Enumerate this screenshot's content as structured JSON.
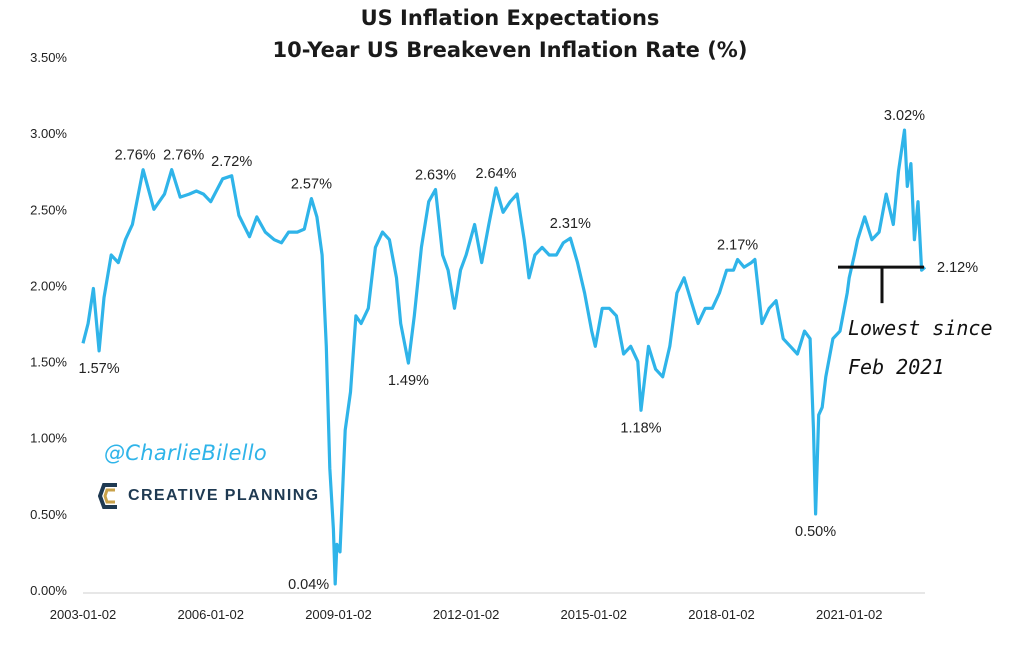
{
  "title_line_1": "US Inflation Expectations",
  "title_line_2": "10-Year US Breakeven Inflation Rate (%)",
  "watermark": {
    "handle": "@CharlieBilello",
    "brand": "CREATIVE PLANNING"
  },
  "annotation": {
    "line_1": "Lowest since",
    "line_2": "Feb 2021",
    "level": 2.12
  },
  "colors": {
    "series": "#2fb4e9",
    "text": "#1a1a1a",
    "handle": "#2fb4e9",
    "brand": "#1f3a52",
    "brand_mark_gold": "#c9a24a"
  },
  "chart_data": {
    "type": "line",
    "title": "US Inflation Expectations",
    "subtitle": "10-Year US Breakeven Inflation Rate (%)",
    "xlabel": "",
    "ylabel": "",
    "x_range": [
      "2003-01-02",
      "2022-10-14"
    ],
    "ylim": [
      0,
      3.5
    ],
    "y_ticks": [
      0.0,
      0.5,
      1.0,
      1.5,
      2.0,
      2.5,
      3.0,
      3.5
    ],
    "y_tick_labels": [
      "0.00%",
      "0.50%",
      "1.00%",
      "1.50%",
      "2.00%",
      "2.50%",
      "3.00%",
      "3.50%"
    ],
    "x_ticks": [
      "2003-01-02",
      "2006-01-02",
      "2009-01-02",
      "2012-01-02",
      "2015-01-02",
      "2018-01-02",
      "2021-01-02"
    ],
    "x_tick_labels": [
      "2003-01-02",
      "2006-01-02",
      "2009-01-02",
      "2012-01-02",
      "2015-01-02",
      "2018-01-02",
      "2021-01-02"
    ],
    "grid": false,
    "legend": "none",
    "series": [
      {
        "x": [
          "2003-01-02",
          "2003-02-15",
          "2003-04-01",
          "2003-05-20",
          "2003-07-01",
          "2003-09-01",
          "2003-11-01",
          "2004-01-01",
          "2004-03-01",
          "2004-06-01",
          "2004-09-01",
          "2004-12-01",
          "2005-02-01",
          "2005-04-15",
          "2005-07-01",
          "2005-09-01",
          "2005-11-01",
          "2006-01-02",
          "2006-04-15",
          "2006-07-01",
          "2006-09-01",
          "2006-12-01",
          "2007-02-01",
          "2007-04-15",
          "2007-07-01",
          "2007-09-01",
          "2007-11-01",
          "2008-01-15",
          "2008-03-15",
          "2008-05-15",
          "2008-07-01",
          "2008-08-15",
          "2008-09-20",
          "2008-10-20",
          "2008-11-20",
          "2008-12-05",
          "2008-12-20",
          "2009-01-15",
          "2009-03-01",
          "2009-04-15",
          "2009-06-01",
          "2009-07-15",
          "2009-09-15",
          "2009-11-15",
          "2010-01-15",
          "2010-03-15",
          "2010-05-15",
          "2010-06-20",
          "2010-08-25",
          "2010-10-15",
          "2010-12-15",
          "2011-02-15",
          "2011-04-15",
          "2011-06-15",
          "2011-08-01",
          "2011-09-25",
          "2011-11-15",
          "2012-01-02",
          "2012-03-15",
          "2012-05-15",
          "2012-07-15",
          "2012-09-15",
          "2012-11-15",
          "2013-01-15",
          "2013-03-15",
          "2013-05-15",
          "2013-06-25",
          "2013-08-15",
          "2013-10-15",
          "2013-12-15",
          "2014-02-15",
          "2014-04-15",
          "2014-06-15",
          "2014-08-15",
          "2014-10-15",
          "2014-12-15",
          "2015-01-15",
          "2015-03-15",
          "2015-05-15",
          "2015-07-15",
          "2015-09-15",
          "2015-11-15",
          "2016-01-15",
          "2016-02-11",
          "2016-04-15",
          "2016-06-15",
          "2016-08-15",
          "2016-10-15",
          "2016-12-15",
          "2017-02-15",
          "2017-04-15",
          "2017-06-15",
          "2017-08-15",
          "2017-10-15",
          "2017-12-15",
          "2018-02-15",
          "2018-04-15",
          "2018-05-20",
          "2018-07-15",
          "2018-09-15",
          "2018-10-15",
          "2018-12-15",
          "2019-02-15",
          "2019-04-15",
          "2019-06-15",
          "2019-08-15",
          "2019-10-15",
          "2019-12-15",
          "2020-02-01",
          "2020-03-01",
          "2020-03-19",
          "2020-04-15",
          "2020-05-15",
          "2020-06-15",
          "2020-08-15",
          "2020-10-15",
          "2020-12-15",
          "2021-01-02",
          "2021-02-15",
          "2021-03-15",
          "2021-05-15",
          "2021-07-15",
          "2021-09-15",
          "2021-11-15",
          "2022-01-15",
          "2022-03-01",
          "2022-04-21",
          "2022-05-15",
          "2022-06-15",
          "2022-07-15",
          "2022-08-15",
          "2022-09-15",
          "2022-10-14"
        ],
        "y": [
          1.62,
          1.75,
          1.98,
          1.57,
          1.92,
          2.2,
          2.15,
          2.3,
          2.4,
          2.76,
          2.5,
          2.6,
          2.76,
          2.58,
          2.6,
          2.62,
          2.6,
          2.55,
          2.7,
          2.72,
          2.46,
          2.32,
          2.45,
          2.35,
          2.3,
          2.28,
          2.35,
          2.35,
          2.37,
          2.57,
          2.45,
          2.2,
          1.6,
          0.8,
          0.4,
          0.04,
          0.3,
          0.25,
          1.05,
          1.3,
          1.8,
          1.75,
          1.85,
          2.25,
          2.35,
          2.3,
          2.05,
          1.75,
          1.49,
          1.8,
          2.25,
          2.55,
          2.63,
          2.2,
          2.1,
          1.85,
          2.1,
          2.2,
          2.4,
          2.15,
          2.4,
          2.64,
          2.48,
          2.55,
          2.6,
          2.3,
          2.05,
          2.2,
          2.25,
          2.2,
          2.2,
          2.28,
          2.31,
          2.15,
          1.95,
          1.7,
          1.6,
          1.85,
          1.85,
          1.8,
          1.55,
          1.6,
          1.5,
          1.18,
          1.6,
          1.45,
          1.4,
          1.6,
          1.95,
          2.05,
          1.9,
          1.75,
          1.85,
          1.85,
          1.95,
          2.1,
          2.1,
          2.17,
          2.12,
          2.15,
          2.17,
          1.75,
          1.85,
          1.9,
          1.65,
          1.6,
          1.55,
          1.7,
          1.65,
          1.05,
          0.5,
          1.15,
          1.2,
          1.4,
          1.65,
          1.7,
          1.95,
          2.05,
          2.2,
          2.3,
          2.45,
          2.3,
          2.35,
          2.6,
          2.4,
          2.75,
          3.02,
          2.65,
          2.8,
          2.3,
          2.55,
          2.1,
          2.12
        ]
      }
    ],
    "point_labels": [
      {
        "text": "1.57%",
        "x": "2003-05-20",
        "y": 1.57,
        "pos": "below"
      },
      {
        "text": "2.76%",
        "x": "2004-06-01",
        "y": 2.76,
        "pos": "above-left"
      },
      {
        "text": "2.76%",
        "x": "2005-02-01",
        "y": 2.76,
        "pos": "above-right"
      },
      {
        "text": "2.72%",
        "x": "2006-07-01",
        "y": 2.72,
        "pos": "above"
      },
      {
        "text": "2.57%",
        "x": "2008-05-15",
        "y": 2.57,
        "pos": "above"
      },
      {
        "text": "0.04%",
        "x": "2008-12-05",
        "y": 0.04,
        "pos": "left"
      },
      {
        "text": "1.49%",
        "x": "2010-08-25",
        "y": 1.49,
        "pos": "below"
      },
      {
        "text": "2.63%",
        "x": "2011-04-15",
        "y": 2.63,
        "pos": "above"
      },
      {
        "text": "2.64%",
        "x": "2012-09-15",
        "y": 2.64,
        "pos": "above"
      },
      {
        "text": "2.31%",
        "x": "2014-06-15",
        "y": 2.31,
        "pos": "above"
      },
      {
        "text": "1.18%",
        "x": "2016-02-11",
        "y": 1.18,
        "pos": "below"
      },
      {
        "text": "2.17%",
        "x": "2018-05-20",
        "y": 2.17,
        "pos": "above"
      },
      {
        "text": "0.50%",
        "x": "2020-03-19",
        "y": 0.5,
        "pos": "below"
      },
      {
        "text": "3.02%",
        "x": "2022-04-21",
        "y": 3.02,
        "pos": "above"
      },
      {
        "text": "2.12%",
        "x": "2022-10-14",
        "y": 2.12,
        "pos": "right"
      }
    ]
  }
}
